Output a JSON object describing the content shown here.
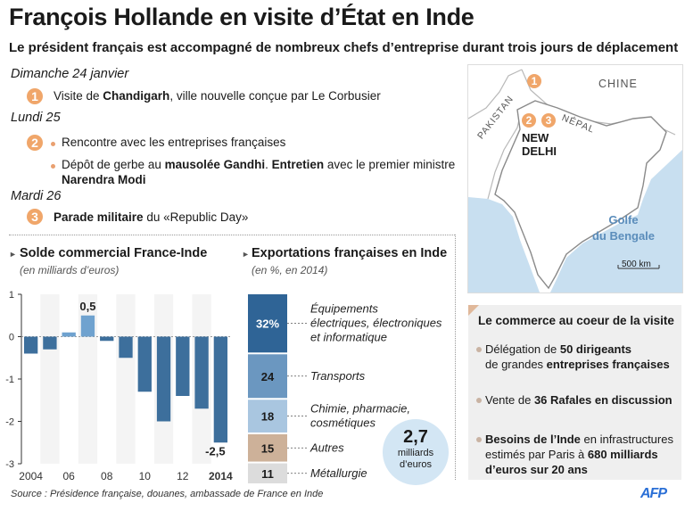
{
  "header": {
    "title": "François Hollande en visite d’État en Inde",
    "subtitle": "Le président français est accompagné de nombreux chefs d’entreprise durant trois jours de déplacement"
  },
  "timeline": {
    "day1": {
      "label": "Dimanche 24 janvier",
      "num": "1",
      "text_a": "Visite de ",
      "text_b": "Chandigarh",
      "text_c": ", ville nouvelle conçue par Le Corbusier"
    },
    "day2": {
      "label": "Lundi 25",
      "num": "2",
      "item1": "Rencontre avec les entreprises françaises",
      "item2_a": "Dépôt de gerbe au ",
      "item2_b": "mausolée Gandhi",
      "item2_c": ". ",
      "item2_d": "Entretien",
      "item2_e": " avec le premier ministre",
      "item2_f": "Narendra Modi"
    },
    "day3": {
      "label": "Mardi 26",
      "num": "3",
      "text_a": "Parade militaire",
      "text_b": " du «Republic Day»"
    }
  },
  "map": {
    "china": "CHINE",
    "pakistan": "PAKISTAN",
    "nepal": "NÉPAL",
    "delhi1": "NEW",
    "delhi2": "DELHI",
    "golfe1": "Golfe",
    "golfe2": "du Bengale",
    "scale": "500 km",
    "marker1": "1",
    "marker2": "2",
    "marker3": "3"
  },
  "colors": {
    "accent": "#f0a66a",
    "bar": "#3d6f9c",
    "sea": "#c8dff0",
    "land": "#ffffff"
  },
  "bar_chart": {
    "title": "Solde commercial France-Inde",
    "subtitle": "(en milliards d’euros)",
    "label_max": "0,5",
    "label_min": "-2,5"
  },
  "stack_chart": {
    "title": "Exportations françaises en Inde",
    "subtitle": "(en %, en 2014)"
  },
  "bubble": {
    "value": "2,7",
    "unit1": "milliards",
    "unit2": "d’euros"
  },
  "side": {
    "title": "Le commerce au coeur de la visite",
    "item1_a": "Délégation de ",
    "item1_b": "50 dirigeants",
    "item1_c": "de grandes ",
    "item1_d": "entreprises françaises",
    "item2_a": "Vente de ",
    "item2_b": "36 Rafales en discussion",
    "item3_a": "Besoins de l’Inde",
    "item3_b": " en infrastructures",
    "item3_c": "estimés par Paris à ",
    "item3_d": "680 milliards",
    "item3_e": "d’euros sur 20 ans"
  },
  "footer": {
    "source": "Source : Présidence française, douanes, ambassade de France en Inde",
    "logo": "AFP"
  },
  "chart_data": [
    {
      "type": "bar",
      "title": "Solde commercial France-Inde",
      "subtitle": "(en milliards d’euros)",
      "categories": [
        "2004",
        "2005",
        "2006",
        "2007",
        "2008",
        "2009",
        "2010",
        "2011",
        "2012",
        "2013",
        "2014"
      ],
      "values": [
        -0.4,
        -0.3,
        0.1,
        0.5,
        -0.1,
        -0.5,
        -1.3,
        -2.0,
        -1.4,
        -1.7,
        -2.5
      ],
      "x_tick_labels": [
        "2004",
        "06",
        "08",
        "10",
        "12",
        "2014"
      ],
      "y_ticks": [
        "1",
        "0",
        "-1",
        "-2",
        "-3"
      ],
      "ylim": [
        -3,
        1
      ],
      "grid": false
    },
    {
      "type": "bar",
      "stacked": true,
      "title": "Exportations françaises en Inde",
      "subtitle": "(en %, en 2014)",
      "categories": [
        "Équipements électriques, électroniques et informatique",
        "Transports",
        "Chimie, pharmacie, cosmétiques",
        "Autres",
        "Métallurgie"
      ],
      "label_lines": [
        [
          "Équipements",
          "électriques, électroniques",
          "et informatique"
        ],
        [
          "Transports"
        ],
        [
          "Chimie, pharmacie,",
          "cosmétiques"
        ],
        [
          "Autres"
        ],
        [
          "Métallurgie"
        ]
      ],
      "values": [
        32,
        24,
        18,
        15,
        11
      ],
      "value_labels": [
        "32%",
        "24",
        "18",
        "15",
        "11"
      ],
      "colors": [
        "#2f6496",
        "#6b97c0",
        "#a9c6e0",
        "#cdb199",
        "#dcdcdc"
      ],
      "text_colors": [
        "#ffffff",
        "#1a1a1a",
        "#1a1a1a",
        "#1a1a1a",
        "#1a1a1a"
      ]
    }
  ]
}
